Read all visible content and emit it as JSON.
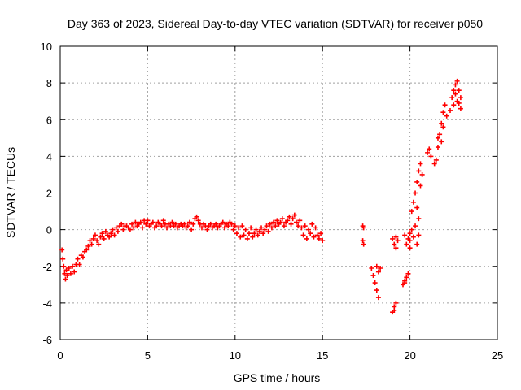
{
  "chart_data": {
    "type": "scatter",
    "title": "Day 363 of 2023, Sidereal Day-to-day VTEC variation (SDTVAR) for receiver p050",
    "xlabel": "GPS time / hours",
    "ylabel": "SDTVAR / TECUs",
    "xlim": [
      0,
      25
    ],
    "ylim": [
      -6,
      10
    ],
    "xticks": [
      0,
      5,
      10,
      15,
      20,
      25
    ],
    "yticks": [
      -6,
      -4,
      -2,
      0,
      2,
      4,
      6,
      8,
      10
    ],
    "xtick_labels": [
      "0",
      "5",
      "10",
      "15",
      "20",
      "25"
    ],
    "ytick_labels": [
      "-6",
      "-4",
      "-2",
      "0",
      "2",
      "4",
      "6",
      "8",
      "10"
    ],
    "grid": true,
    "marker": "+",
    "color": "#ff0000",
    "series": [
      {
        "name": "SDTVAR",
        "points": [
          [
            0.1,
            -1.1
          ],
          [
            0.15,
            -1.6
          ],
          [
            0.2,
            -2.0
          ],
          [
            0.25,
            -2.4
          ],
          [
            0.3,
            -2.7
          ],
          [
            0.35,
            -2.2
          ],
          [
            0.4,
            -2.5
          ],
          [
            0.5,
            -2.1
          ],
          [
            0.6,
            -2.4
          ],
          [
            0.7,
            -2.0
          ],
          [
            0.8,
            -2.3
          ],
          [
            0.9,
            -1.9
          ],
          [
            1.0,
            -1.6
          ],
          [
            1.1,
            -1.9
          ],
          [
            1.2,
            -1.4
          ],
          [
            1.3,
            -1.5
          ],
          [
            1.4,
            -1.2
          ],
          [
            1.5,
            -1.1
          ],
          [
            1.6,
            -0.9
          ],
          [
            1.7,
            -0.6
          ],
          [
            1.8,
            -0.8
          ],
          [
            1.9,
            -0.5
          ],
          [
            2.0,
            -0.3
          ],
          [
            2.1,
            -0.6
          ],
          [
            2.2,
            -0.8
          ],
          [
            2.3,
            -0.4
          ],
          [
            2.4,
            -0.2
          ],
          [
            2.5,
            -0.5
          ],
          [
            2.6,
            -0.1
          ],
          [
            2.7,
            -0.3
          ],
          [
            2.8,
            -0.4
          ],
          [
            2.9,
            -0.2
          ],
          [
            3.0,
            0.0
          ],
          [
            3.1,
            -0.3
          ],
          [
            3.2,
            0.1
          ],
          [
            3.3,
            -0.1
          ],
          [
            3.4,
            0.2
          ],
          [
            3.5,
            0.3
          ],
          [
            3.6,
            0.0
          ],
          [
            3.7,
            0.2
          ],
          [
            3.8,
            0.2
          ],
          [
            3.9,
            0.1
          ],
          [
            4.0,
            0.0
          ],
          [
            4.1,
            0.3
          ],
          [
            4.2,
            0.1
          ],
          [
            4.3,
            0.4
          ],
          [
            4.4,
            0.2
          ],
          [
            4.5,
            0.3
          ],
          [
            4.6,
            0.4
          ],
          [
            4.7,
            0.1
          ],
          [
            4.8,
            0.5
          ],
          [
            4.9,
            0.3
          ],
          [
            5.0,
            0.5
          ],
          [
            5.1,
            0.2
          ],
          [
            5.2,
            0.3
          ],
          [
            5.3,
            0.4
          ],
          [
            5.4,
            0.1
          ],
          [
            5.5,
            0.2
          ],
          [
            5.6,
            0.4
          ],
          [
            5.7,
            0.3
          ],
          [
            5.8,
            0.2
          ],
          [
            5.9,
            0.5
          ],
          [
            6.0,
            0.3
          ],
          [
            6.1,
            0.1
          ],
          [
            6.2,
            0.3
          ],
          [
            6.3,
            0.2
          ],
          [
            6.4,
            0.4
          ],
          [
            6.5,
            0.2
          ],
          [
            6.6,
            0.3
          ],
          [
            6.7,
            0.1
          ],
          [
            6.8,
            0.2
          ],
          [
            6.9,
            0.3
          ],
          [
            7.0,
            0.2
          ],
          [
            7.1,
            0.3
          ],
          [
            7.2,
            0.1
          ],
          [
            7.3,
            0.2
          ],
          [
            7.4,
            0.4
          ],
          [
            7.5,
            0.0
          ],
          [
            7.6,
            0.3
          ],
          [
            7.7,
            0.6
          ],
          [
            7.8,
            0.7
          ],
          [
            7.9,
            0.5
          ],
          [
            8.0,
            0.3
          ],
          [
            8.1,
            0.1
          ],
          [
            8.2,
            0.3
          ],
          [
            8.3,
            0.2
          ],
          [
            8.4,
            0.0
          ],
          [
            8.5,
            0.2
          ],
          [
            8.6,
            0.3
          ],
          [
            8.7,
            0.1
          ],
          [
            8.8,
            0.2
          ],
          [
            8.9,
            0.3
          ],
          [
            9.0,
            0.1
          ],
          [
            9.1,
            0.2
          ],
          [
            9.2,
            0.3
          ],
          [
            9.3,
            0.4
          ],
          [
            9.4,
            0.1
          ],
          [
            9.5,
            0.3
          ],
          [
            9.6,
            0.2
          ],
          [
            9.7,
            0.4
          ],
          [
            9.8,
            0.3
          ],
          [
            9.9,
            0.0
          ],
          [
            10.0,
            0.2
          ],
          [
            10.1,
            -0.2
          ],
          [
            10.2,
            0.1
          ],
          [
            10.3,
            -0.4
          ],
          [
            10.4,
            0.2
          ],
          [
            10.5,
            -0.3
          ],
          [
            10.6,
            0.0
          ],
          [
            10.7,
            -0.5
          ],
          [
            10.8,
            -0.2
          ],
          [
            10.9,
            0.1
          ],
          [
            11.0,
            -0.4
          ],
          [
            11.1,
            -0.2
          ],
          [
            11.2,
            0.0
          ],
          [
            11.3,
            -0.3
          ],
          [
            11.4,
            -0.1
          ],
          [
            11.5,
            0.1
          ],
          [
            11.6,
            -0.2
          ],
          [
            11.7,
            0.0
          ],
          [
            11.8,
            0.2
          ],
          [
            11.9,
            -0.1
          ],
          [
            12.0,
            0.3
          ],
          [
            12.1,
            0.1
          ],
          [
            12.2,
            0.4
          ],
          [
            12.3,
            0.2
          ],
          [
            12.4,
            0.5
          ],
          [
            12.5,
            0.3
          ],
          [
            12.6,
            0.4
          ],
          [
            12.7,
            0.6
          ],
          [
            12.8,
            0.2
          ],
          [
            12.9,
            0.4
          ],
          [
            13.0,
            0.5
          ],
          [
            13.1,
            0.7
          ],
          [
            13.2,
            0.3
          ],
          [
            13.3,
            0.6
          ],
          [
            13.4,
            0.8
          ],
          [
            13.5,
            0.4
          ],
          [
            13.6,
            0.2
          ],
          [
            13.7,
            0.5
          ],
          [
            13.8,
            0.1
          ],
          [
            13.9,
            -0.3
          ],
          [
            14.0,
            0.2
          ],
          [
            14.1,
            -0.5
          ],
          [
            14.2,
            0.0
          ],
          [
            14.3,
            -0.2
          ],
          [
            14.4,
            0.3
          ],
          [
            14.5,
            -0.4
          ],
          [
            14.6,
            0.1
          ],
          [
            14.7,
            -0.3
          ],
          [
            14.8,
            -0.5
          ],
          [
            14.9,
            -0.2
          ],
          [
            15.0,
            -0.6
          ],
          [
            17.3,
            0.2
          ],
          [
            17.35,
            0.1
          ],
          [
            17.3,
            -0.6
          ],
          [
            17.35,
            -0.8
          ],
          [
            17.8,
            -2.1
          ],
          [
            17.9,
            -2.5
          ],
          [
            18.0,
            -2.9
          ],
          [
            18.1,
            -3.3
          ],
          [
            18.2,
            -3.7
          ],
          [
            18.1,
            -2.0
          ],
          [
            18.2,
            -2.3
          ],
          [
            18.3,
            -2.1
          ],
          [
            19.0,
            -4.5
          ],
          [
            19.1,
            -4.2
          ],
          [
            19.2,
            -4.0
          ],
          [
            19.1,
            -4.4
          ],
          [
            19.0,
            -0.5
          ],
          [
            19.1,
            -0.8
          ],
          [
            19.2,
            -0.4
          ],
          [
            19.3,
            -0.6
          ],
          [
            19.2,
            -1.0
          ],
          [
            19.6,
            -3.0
          ],
          [
            19.7,
            -2.8
          ],
          [
            19.8,
            -2.6
          ],
          [
            19.9,
            -2.4
          ],
          [
            19.7,
            -2.9
          ],
          [
            19.7,
            -0.3
          ],
          [
            19.8,
            -0.8
          ],
          [
            19.9,
            -0.5
          ],
          [
            20.0,
            -0.2
          ],
          [
            20.0,
            -0.6
          ],
          [
            20.0,
            -1.0
          ],
          [
            20.1,
            0.0
          ],
          [
            20.2,
            -0.4
          ],
          [
            20.3,
            0.2
          ],
          [
            20.4,
            -0.8
          ],
          [
            20.5,
            -0.3
          ],
          [
            20.1,
            1.0
          ],
          [
            20.2,
            1.5
          ],
          [
            20.3,
            2.0
          ],
          [
            20.4,
            2.6
          ],
          [
            20.5,
            3.2
          ],
          [
            20.6,
            3.6
          ],
          [
            20.5,
            0.6
          ],
          [
            20.4,
            1.2
          ],
          [
            20.6,
            2.4
          ],
          [
            20.7,
            3.0
          ],
          [
            21.0,
            4.2
          ],
          [
            21.1,
            4.4
          ],
          [
            21.2,
            4.0
          ],
          [
            21.4,
            3.6
          ],
          [
            21.5,
            3.8
          ],
          [
            21.6,
            4.5
          ],
          [
            21.7,
            5.2
          ],
          [
            21.8,
            5.8
          ],
          [
            21.9,
            6.4
          ],
          [
            22.0,
            6.8
          ],
          [
            22.1,
            6.2
          ],
          [
            21.6,
            5.0
          ],
          [
            21.8,
            4.8
          ],
          [
            21.9,
            5.6
          ],
          [
            22.3,
            6.5
          ],
          [
            22.4,
            7.2
          ],
          [
            22.5,
            7.6
          ],
          [
            22.6,
            7.9
          ],
          [
            22.7,
            8.1
          ],
          [
            22.8,
            7.6
          ],
          [
            22.9,
            7.2
          ],
          [
            22.9,
            6.6
          ],
          [
            22.8,
            6.9
          ],
          [
            22.6,
            7.4
          ],
          [
            22.5,
            6.8
          ],
          [
            22.7,
            7.0
          ]
        ]
      }
    ]
  }
}
